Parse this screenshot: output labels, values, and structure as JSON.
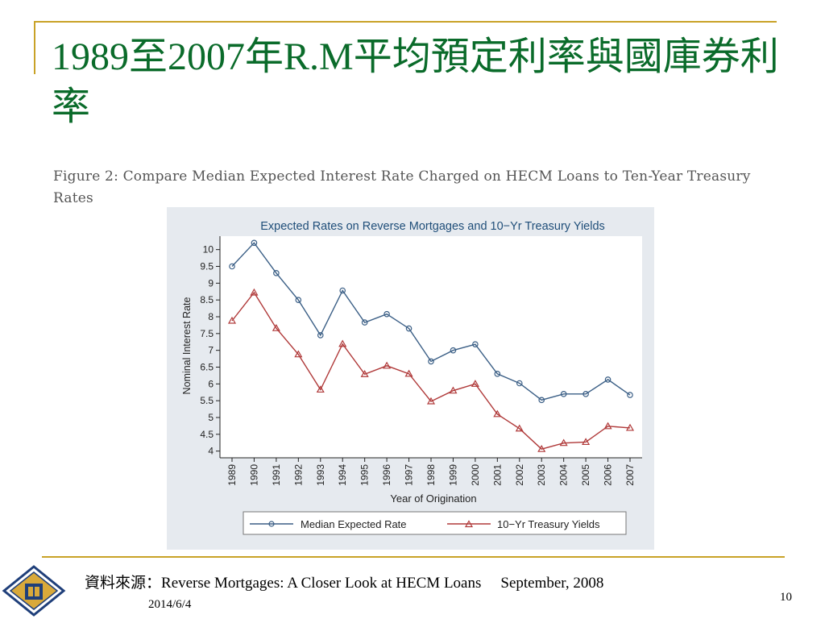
{
  "slide": {
    "title": "1989至2007年R.M平均預定利率與國庫券利率",
    "figure_caption": "Figure 2: Compare Median Expected Interest Rate Charged on HECM Loans to Ten-Year Treasury Rates",
    "source_label": "資料來源：",
    "source_text": "Reverse Mortgages: A Closer Look at HECM Loans",
    "source_date": "September, 2008",
    "date": "2014/6/4",
    "page_number": "10"
  },
  "colors": {
    "title": "#0a6b2a",
    "accent_rule": "#c9a227",
    "chart_panel": "#e6eaef",
    "chart_title": "#1f4e79",
    "median_series": "#3b5f86",
    "treasury_series": "#b03a3a"
  },
  "chart_data": {
    "type": "line",
    "title": "Expected Rates on Reverse Mortgages and 10−Yr Treasury Yields",
    "xlabel": "Year of Origination",
    "ylabel": "Nominal Interest Rate",
    "x": [
      "1989",
      "1990",
      "1991",
      "1992",
      "1993",
      "1994",
      "1995",
      "1996",
      "1997",
      "1998",
      "1999",
      "2000",
      "2001",
      "2002",
      "2003",
      "2004",
      "2005",
      "2006",
      "2007"
    ],
    "ylim": [
      3.8,
      10.4
    ],
    "yticks": [
      "4",
      "4.5",
      "5",
      "5.5",
      "6",
      "6.5",
      "7",
      "7.5",
      "8",
      "8.5",
      "9",
      "9.5",
      "10"
    ],
    "grid": false,
    "legend_position": "bottom",
    "series": [
      {
        "name": "Median Expected Rate",
        "marker": "circle",
        "values": [
          9.5,
          10.2,
          9.3,
          8.5,
          7.45,
          8.78,
          7.83,
          8.08,
          7.65,
          6.67,
          7.0,
          7.18,
          6.3,
          6.02,
          5.52,
          5.7,
          5.7,
          6.13,
          5.67
        ]
      },
      {
        "name": "10−Yr Treasury Yields",
        "marker": "triangle",
        "values": [
          7.88,
          8.72,
          7.66,
          6.88,
          5.83,
          7.19,
          6.29,
          6.54,
          6.3,
          5.48,
          5.8,
          6.0,
          5.1,
          4.67,
          4.06,
          4.24,
          4.27,
          4.74,
          4.69
        ]
      }
    ]
  }
}
